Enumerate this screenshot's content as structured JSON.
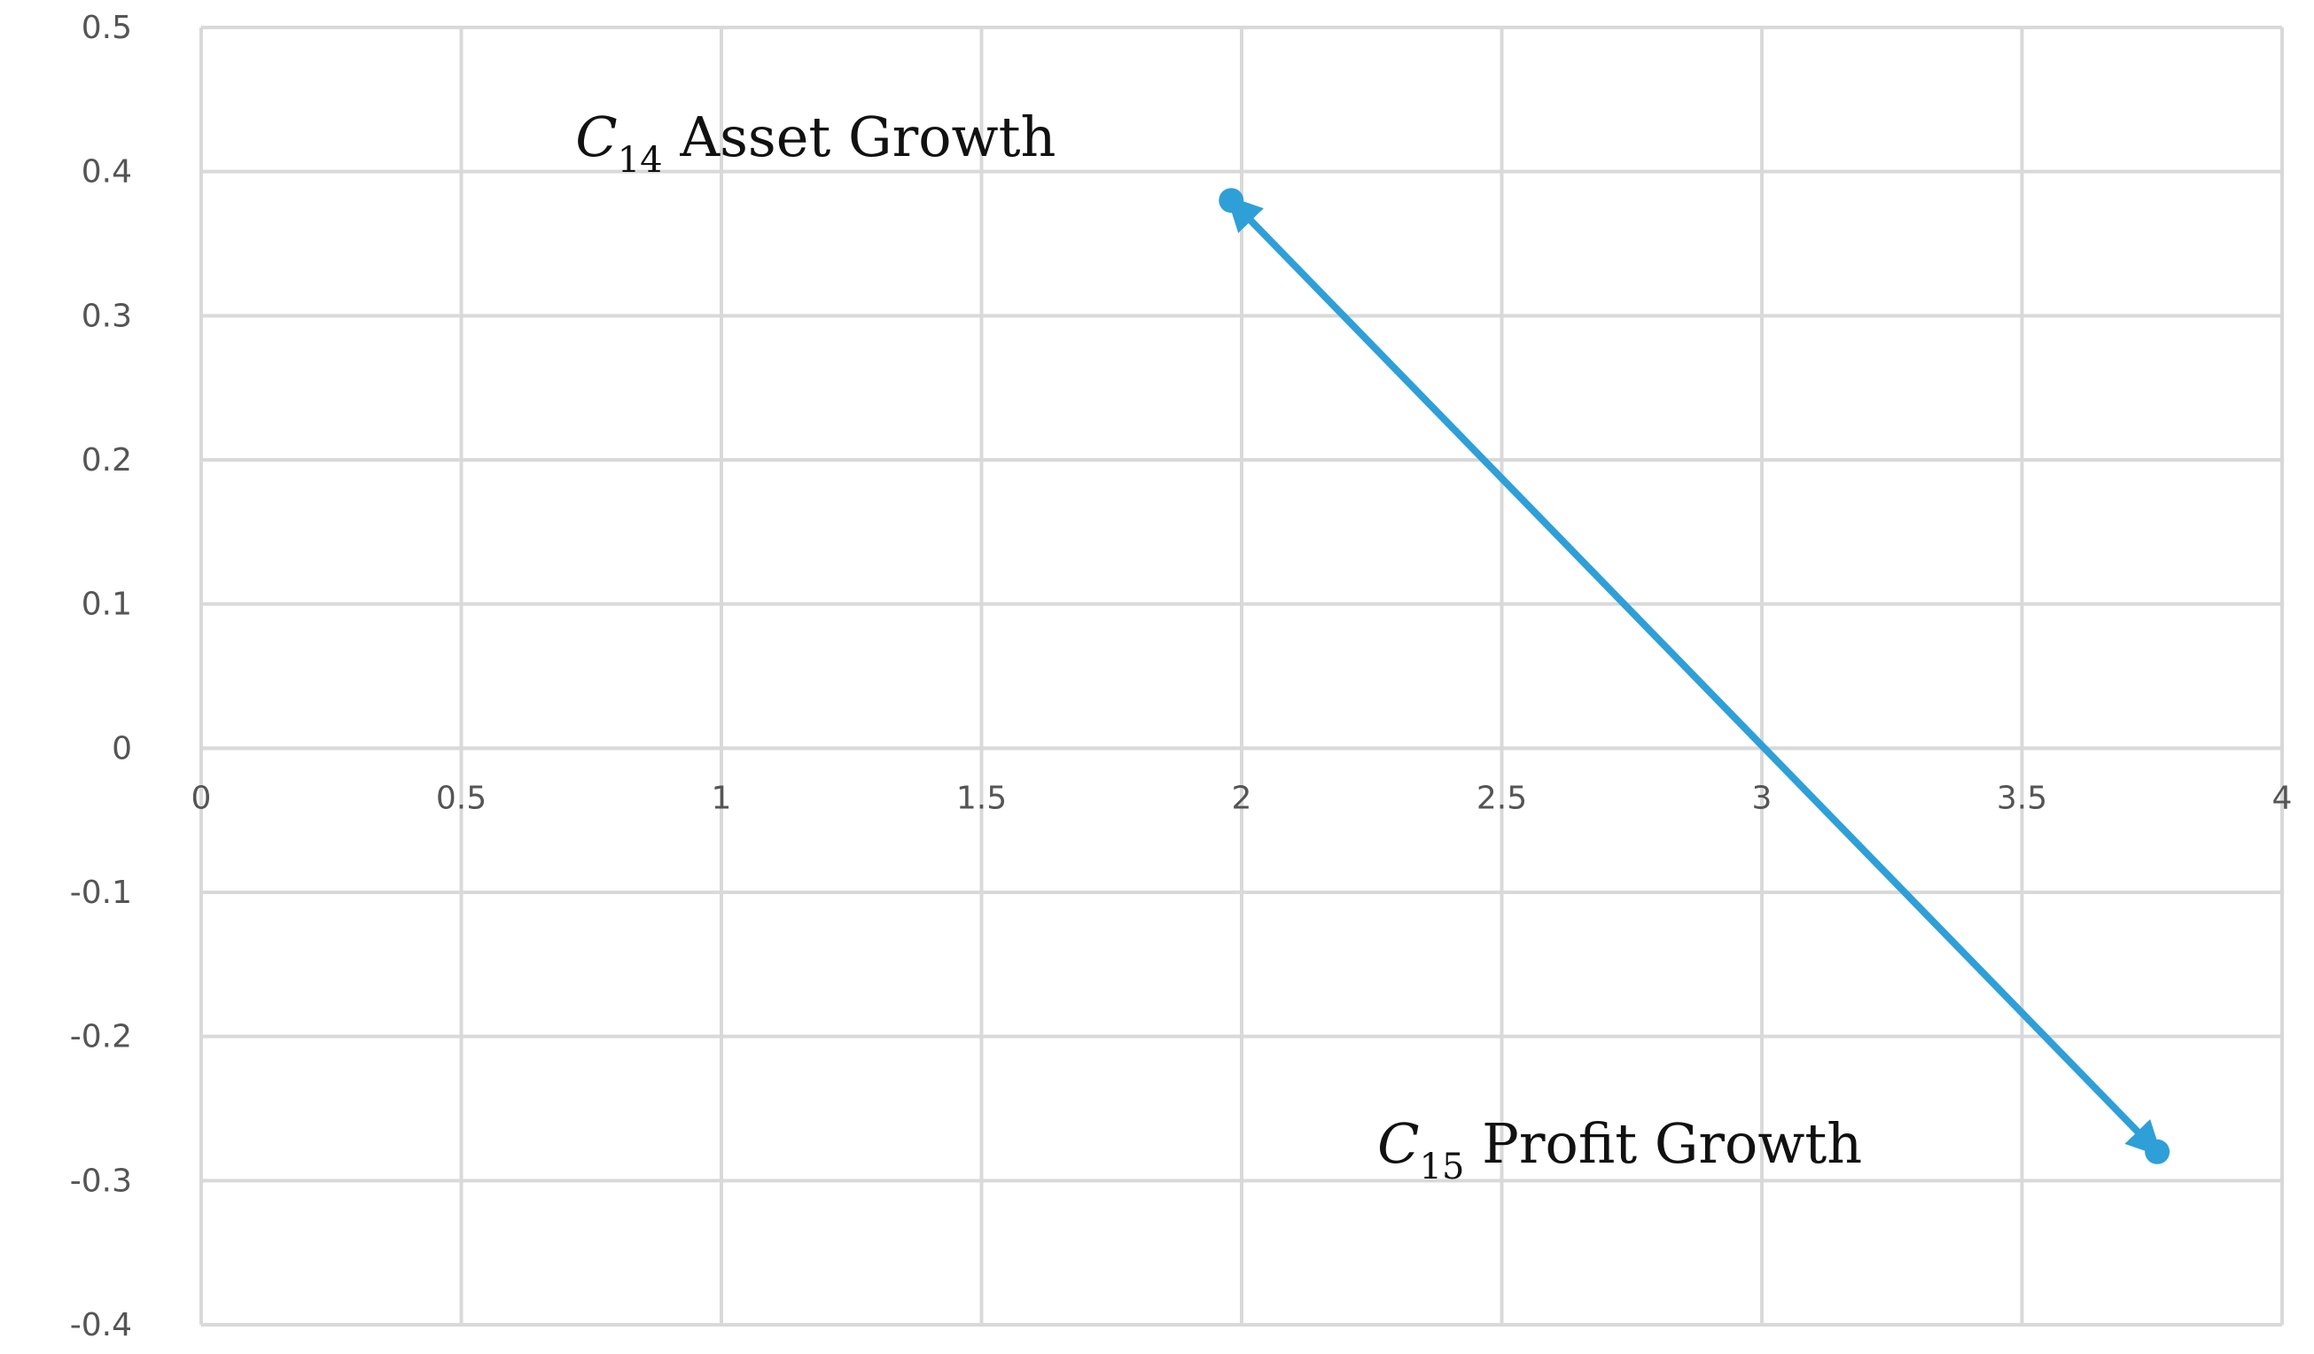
{
  "chart_data": {
    "type": "scatter",
    "title": "",
    "xlabel": "",
    "ylabel": "",
    "xlim": [
      0,
      4
    ],
    "ylim": [
      -0.4,
      0.5
    ],
    "x_ticks": [
      0,
      0.5,
      1,
      1.5,
      2,
      2.5,
      3,
      3.5,
      4
    ],
    "y_ticks": [
      0.5,
      0.4,
      0.3,
      0.2,
      0.1,
      0,
      -0.1,
      -0.2,
      -0.3,
      -0.4
    ],
    "grid": true,
    "series": [
      {
        "color": "#2f9fd8",
        "points": [
          {
            "x": 1.98,
            "y": 0.38,
            "symbol": "C",
            "subscript": "14",
            "label": "Asset Growth"
          },
          {
            "x": 3.76,
            "y": -0.28,
            "symbol": "C",
            "subscript": "15",
            "label": "Profit Growth"
          }
        ],
        "connector": "double-arrow"
      }
    ]
  }
}
